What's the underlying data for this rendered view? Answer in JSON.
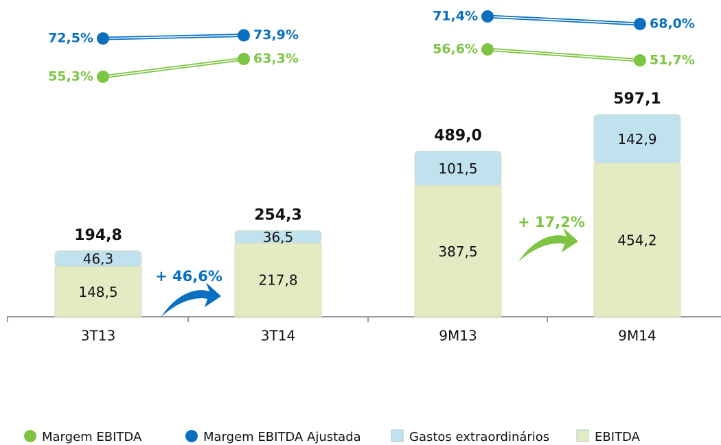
{
  "chart_data": {
    "type": "bar",
    "categories": [
      "3T13",
      "3T14",
      "9M13",
      "9M14"
    ],
    "series": [
      {
        "name": "EBITDA",
        "color": "#e3ebc3",
        "values": [
          148.5,
          217.8,
          387.5,
          454.2
        ],
        "value_labels": [
          "148,5",
          "217,8",
          "387,5",
          "454,2"
        ]
      },
      {
        "name": "Gastos extraordinários",
        "color": "#bfe2ee",
        "values": [
          46.3,
          36.5,
          101.5,
          142.9
        ],
        "value_labels": [
          "46,3",
          "36,5",
          "101,5",
          "142,9"
        ]
      }
    ],
    "totals": {
      "values": [
        194.8,
        254.3,
        489.0,
        597.1
      ],
      "value_labels": [
        "194,8",
        "254,3",
        "489,0",
        "597,1"
      ]
    },
    "lines": [
      {
        "name": "Margem EBITDA",
        "color": "#7dc443",
        "values": [
          55.3,
          63.3,
          56.6,
          51.7
        ],
        "value_labels": [
          "55,3%",
          "63,3%",
          "56,6%",
          "51,7%"
        ]
      },
      {
        "name": "Margem EBITDA Ajustada",
        "color": "#0b6fc0",
        "values": [
          72.5,
          73.9,
          71.4,
          68.0
        ],
        "value_labels": [
          "72,5%",
          "73,9%",
          "71,4%",
          "68,0%"
        ]
      }
    ],
    "annotations": [
      {
        "text": "+ 46,6%",
        "color": "#0b6fc0"
      },
      {
        "text": "+ 17,2%",
        "color": "#7dc443"
      }
    ]
  }
}
